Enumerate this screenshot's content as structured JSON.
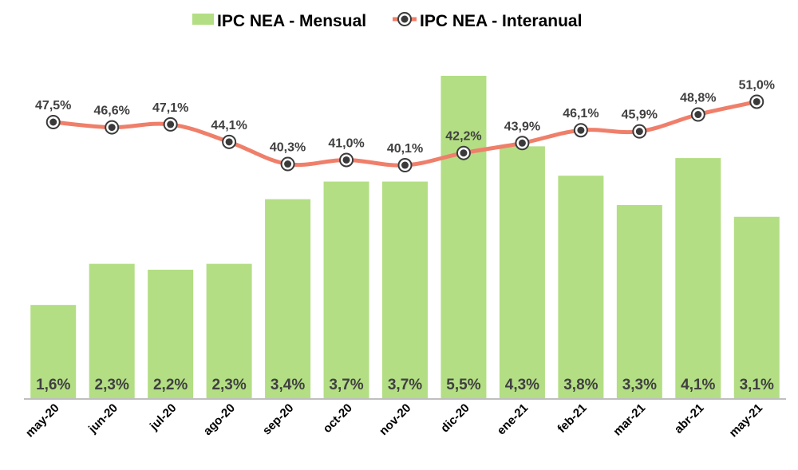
{
  "chart_data": {
    "type": "bar",
    "title": "",
    "xlabel": "",
    "ylabel": "",
    "categories": [
      "may-20",
      "jun-20",
      "jul-20",
      "ago-20",
      "sep-20",
      "oct-20",
      "nov-20",
      "dic-20",
      "ene-21",
      "feb-21",
      "mar-21",
      "abr-21",
      "may-21"
    ],
    "series": [
      {
        "name": "IPC NEA - Mensual",
        "type": "bar",
        "color": "#b3de84",
        "values": [
          1.6,
          2.3,
          2.2,
          2.3,
          3.4,
          3.7,
          3.7,
          5.5,
          4.3,
          3.8,
          3.3,
          4.1,
          3.1
        ],
        "labels": [
          "1,6%",
          "2,3%",
          "2,2%",
          "2,3%",
          "3,4%",
          "3,7%",
          "3,7%",
          "5,5%",
          "4,3%",
          "3,8%",
          "3,3%",
          "4,1%",
          "3,1%"
        ]
      },
      {
        "name": "IPC NEA - Interanual",
        "type": "line",
        "color": "#ef7f6a",
        "marker_color": "#3a3a3a",
        "values": [
          47.5,
          46.6,
          47.1,
          44.1,
          40.3,
          41.0,
          40.1,
          42.2,
          43.9,
          46.1,
          45.9,
          48.8,
          51.0
        ],
        "labels": [
          "47,5%",
          "46,6%",
          "47,1%",
          "44,1%",
          "40,3%",
          "41,0%",
          "40,1%",
          "42,2%",
          "43,9%",
          "46,1%",
          "45,9%",
          "48,8%",
          "51,0%"
        ]
      }
    ],
    "legend": {
      "position": "top-center",
      "entries": [
        "IPC NEA - Mensual",
        "IPC NEA - Interanual"
      ]
    },
    "grid": false,
    "ylim_bars": [
      0,
      5.5
    ],
    "ylim_line": [
      40.1,
      51.0
    ],
    "axis_color": "#bfbfbf"
  }
}
